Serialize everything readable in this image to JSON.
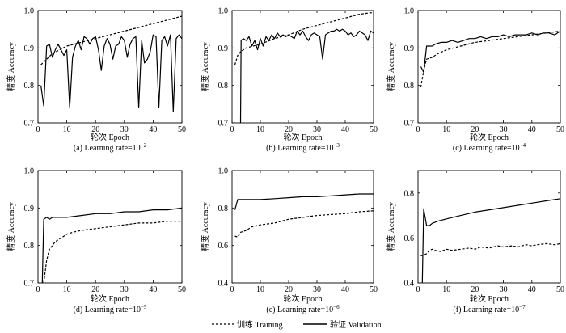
{
  "legend": {
    "training_label": "训练 Training",
    "validation_label": "验证 Validation"
  },
  "chart_data": [
    {
      "type": "line",
      "caption": "(a) Learning rate=10",
      "caption_exp": "−2",
      "xlabel": "轮次 Epoch",
      "ylabel": "精度 Accuracy",
      "xlim": [
        0,
        50
      ],
      "ylim": [
        0.7,
        1.0
      ],
      "xticks": [
        0,
        10,
        20,
        30,
        40,
        50
      ],
      "yticks": [
        "0.7",
        "0.8",
        "0.9",
        "1.0"
      ],
      "series": [
        {
          "name": "训练 Training",
          "style": "dashed",
          "x": [
            1,
            5,
            10,
            15,
            20,
            25,
            30,
            35,
            40,
            45,
            50
          ],
          "values": [
            0.855,
            0.885,
            0.905,
            0.915,
            0.925,
            0.935,
            0.945,
            0.955,
            0.965,
            0.975,
            0.985
          ]
        },
        {
          "name": "验证 Validation",
          "style": "solid",
          "x": [
            1,
            2,
            3,
            4,
            5,
            6,
            7,
            8,
            9,
            10,
            11,
            12,
            13,
            14,
            15,
            16,
            17,
            18,
            19,
            20,
            21,
            22,
            23,
            24,
            25,
            26,
            27,
            28,
            29,
            30,
            31,
            32,
            33,
            34,
            35,
            36,
            37,
            38,
            39,
            40,
            41,
            42,
            43,
            44,
            45,
            46,
            47,
            48,
            49,
            50
          ],
          "values": [
            0.8,
            0.745,
            0.905,
            0.91,
            0.875,
            0.895,
            0.91,
            0.895,
            0.88,
            0.895,
            0.74,
            0.875,
            0.905,
            0.92,
            0.895,
            0.93,
            0.925,
            0.91,
            0.925,
            0.93,
            0.895,
            0.84,
            0.905,
            0.925,
            0.91,
            0.87,
            0.905,
            0.91,
            0.93,
            0.92,
            0.875,
            0.91,
            0.925,
            0.93,
            0.74,
            0.92,
            0.86,
            0.87,
            0.89,
            0.935,
            0.93,
            0.74,
            0.92,
            0.93,
            0.905,
            0.935,
            0.73,
            0.925,
            0.935,
            0.925
          ]
        }
      ]
    },
    {
      "type": "line",
      "caption": "(b) Learning rate=10",
      "caption_exp": "−3",
      "xlabel": "轮次 Epoch",
      "ylabel": "精度 Accuracy",
      "xlim": [
        0,
        50
      ],
      "ylim": [
        0.7,
        1.0
      ],
      "xticks": [
        0,
        10,
        20,
        30,
        40,
        50
      ],
      "yticks": [
        "0.7",
        "0.8",
        "0.9",
        "1.0"
      ],
      "series": [
        {
          "name": "训练 Training",
          "style": "dashed",
          "x": [
            1,
            2,
            3,
            5,
            10,
            15,
            20,
            25,
            30,
            35,
            40,
            45,
            50
          ],
          "values": [
            0.855,
            0.88,
            0.89,
            0.9,
            0.91,
            0.925,
            0.935,
            0.95,
            0.96,
            0.97,
            0.98,
            0.99,
            0.995
          ]
        },
        {
          "name": "验证 Validation",
          "style": "solid",
          "x": [
            3,
            3.2,
            4,
            5,
            6,
            7,
            8,
            9,
            10,
            11,
            12,
            13,
            14,
            15,
            16,
            17,
            18,
            19,
            20,
            21,
            22,
            23,
            24,
            25,
            26,
            27,
            28,
            29,
            30,
            31,
            32,
            33,
            34,
            35,
            36,
            37,
            38,
            39,
            40,
            41,
            42,
            43,
            44,
            45,
            46,
            47,
            48,
            49,
            50
          ],
          "values": [
            0.7,
            0.92,
            0.925,
            0.92,
            0.93,
            0.905,
            0.92,
            0.895,
            0.925,
            0.905,
            0.93,
            0.92,
            0.935,
            0.925,
            0.94,
            0.93,
            0.935,
            0.93,
            0.935,
            0.93,
            0.925,
            0.945,
            0.935,
            0.945,
            0.93,
            0.92,
            0.935,
            0.94,
            0.935,
            0.93,
            0.87,
            0.935,
            0.94,
            0.945,
            0.945,
            0.95,
            0.945,
            0.95,
            0.945,
            0.935,
            0.94,
            0.93,
            0.935,
            0.945,
            0.94,
            0.935,
            0.92,
            0.945,
            0.94
          ]
        }
      ]
    },
    {
      "type": "line",
      "caption": "(c) Learning rate=10",
      "caption_exp": "−4",
      "xlabel": "轮次 Epoch",
      "ylabel": "精度 Accuracy",
      "xlim": [
        0,
        50
      ],
      "ylim": [
        0.7,
        1.0
      ],
      "xticks": [
        0,
        10,
        20,
        30,
        40,
        50
      ],
      "yticks": [
        "0.7",
        "0.8",
        "0.9",
        "1.0"
      ],
      "series": [
        {
          "name": "训练 Training",
          "style": "dashed",
          "x": [
            1,
            2,
            3,
            5,
            7,
            10,
            15,
            20,
            25,
            30,
            35,
            40,
            45,
            50
          ],
          "values": [
            0.795,
            0.84,
            0.87,
            0.875,
            0.885,
            0.895,
            0.905,
            0.915,
            0.92,
            0.925,
            0.93,
            0.935,
            0.94,
            0.945
          ]
        },
        {
          "name": "验证 Validation",
          "style": "solid",
          "x": [
            1,
            2,
            3,
            4,
            5,
            6,
            8,
            10,
            12,
            14,
            16,
            18,
            20,
            22,
            24,
            26,
            28,
            30,
            32,
            34,
            36,
            38,
            40,
            42,
            44,
            46,
            48,
            50
          ],
          "values": [
            0.85,
            0.835,
            0.905,
            0.905,
            0.905,
            0.91,
            0.915,
            0.915,
            0.92,
            0.915,
            0.92,
            0.925,
            0.925,
            0.93,
            0.925,
            0.93,
            0.93,
            0.935,
            0.93,
            0.935,
            0.935,
            0.935,
            0.94,
            0.935,
            0.94,
            0.94,
            0.935,
            0.945
          ]
        }
      ]
    },
    {
      "type": "line",
      "caption": "(d) Learning rate=10",
      "caption_exp": "−5",
      "xlabel": "轮次 Epoch",
      "ylabel": "精度 Accuracy",
      "xlim": [
        0,
        50
      ],
      "ylim": [
        0.7,
        1.0
      ],
      "xticks": [
        0,
        10,
        20,
        30,
        40,
        50
      ],
      "yticks": [
        "0.7",
        "0.8",
        "0.9",
        "1.0"
      ],
      "series": [
        {
          "name": "训练 Training",
          "style": "dashed",
          "x": [
            2,
            2.5,
            3,
            4,
            5,
            6,
            7,
            8,
            10,
            12,
            15,
            20,
            25,
            30,
            35,
            40,
            45,
            50
          ],
          "values": [
            0.7,
            0.73,
            0.76,
            0.79,
            0.8,
            0.81,
            0.815,
            0.82,
            0.83,
            0.835,
            0.84,
            0.845,
            0.85,
            0.855,
            0.86,
            0.86,
            0.865,
            0.865
          ]
        },
        {
          "name": "验证 Validation",
          "style": "solid",
          "x": [
            1.5,
            2,
            3,
            4,
            5,
            6,
            8,
            10,
            15,
            20,
            25,
            30,
            35,
            40,
            45,
            50
          ],
          "values": [
            0.7,
            0.87,
            0.875,
            0.87,
            0.875,
            0.875,
            0.875,
            0.875,
            0.88,
            0.885,
            0.885,
            0.89,
            0.89,
            0.895,
            0.895,
            0.9
          ]
        }
      ]
    },
    {
      "type": "line",
      "caption": "(e) Learning rate=10",
      "caption_exp": "−6",
      "xlabel": "轮次 Epoch",
      "ylabel": "精度 Accuracy",
      "xlim": [
        0,
        50
      ],
      "ylim": [
        0.4,
        1.0
      ],
      "xticks": [
        0,
        10,
        20,
        30,
        40,
        50
      ],
      "yticks": [
        "0.4",
        "0.6",
        "0.8",
        "1.0"
      ],
      "series": [
        {
          "name": "训练 Training",
          "style": "dashed",
          "x": [
            1,
            2,
            3,
            5,
            7,
            10,
            15,
            20,
            25,
            30,
            35,
            40,
            45,
            50
          ],
          "values": [
            0.65,
            0.645,
            0.67,
            0.68,
            0.7,
            0.71,
            0.72,
            0.74,
            0.75,
            0.76,
            0.765,
            0.77,
            0.78,
            0.785
          ]
        },
        {
          "name": "验证 Validation",
          "style": "solid",
          "x": [
            1,
            2,
            3,
            5,
            10,
            15,
            20,
            25,
            30,
            35,
            40,
            45,
            50
          ],
          "values": [
            0.79,
            0.845,
            0.845,
            0.845,
            0.845,
            0.85,
            0.855,
            0.86,
            0.86,
            0.865,
            0.87,
            0.875,
            0.875
          ]
        }
      ]
    },
    {
      "type": "line",
      "caption": "(f) Learning rate=10",
      "caption_exp": "−7",
      "xlabel": "轮次 Epoch",
      "ylabel": "精度 Accuracy",
      "xlim": [
        0,
        50
      ],
      "ylim": [
        0.4,
        0.9
      ],
      "xticks": [
        0,
        10,
        20,
        30,
        40,
        50
      ],
      "yticks": [
        "0.4",
        "0.6",
        "0.8"
      ],
      "series": [
        {
          "name": "训练 Training",
          "style": "dashed",
          "x": [
            1,
            2,
            3,
            4,
            5,
            6,
            8,
            10,
            12,
            15,
            18,
            20,
            22,
            25,
            28,
            30,
            33,
            35,
            38,
            40,
            42,
            45,
            48,
            50
          ],
          "values": [
            0.52,
            0.525,
            0.53,
            0.545,
            0.55,
            0.545,
            0.54,
            0.55,
            0.545,
            0.55,
            0.555,
            0.55,
            0.56,
            0.555,
            0.565,
            0.56,
            0.565,
            0.56,
            0.57,
            0.565,
            0.57,
            0.575,
            0.57,
            0.575
          ]
        },
        {
          "name": "验证 Validation",
          "style": "solid",
          "x": [
            1.5,
            2,
            3,
            4,
            5,
            7,
            10,
            15,
            20,
            25,
            30,
            35,
            40,
            45,
            50
          ],
          "values": [
            0.4,
            0.73,
            0.655,
            0.655,
            0.665,
            0.675,
            0.685,
            0.7,
            0.715,
            0.725,
            0.735,
            0.745,
            0.755,
            0.765,
            0.775
          ]
        }
      ]
    }
  ]
}
